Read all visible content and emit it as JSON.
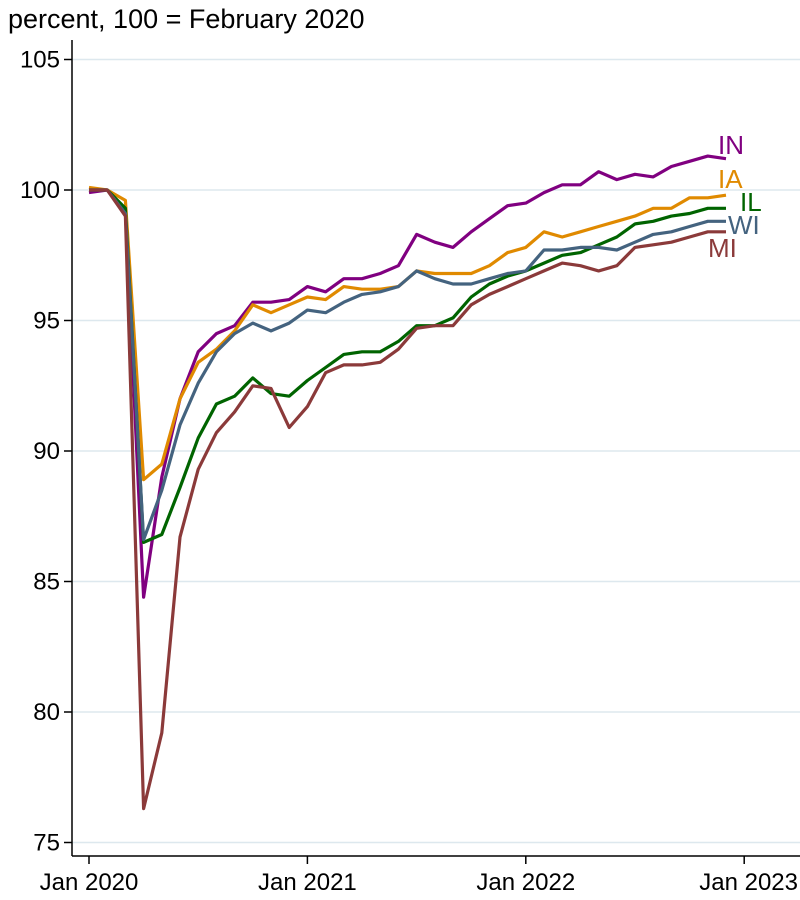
{
  "chart_data": {
    "type": "line",
    "title": "percent, 100 = February 2020",
    "xlabel": "",
    "ylabel": "",
    "ylim": [
      74.5,
      106
    ],
    "x_tick_labels": [
      "Jan 2020",
      "Jan 2021",
      "Jan 2022",
      "Jan 2023"
    ],
    "y_ticks": [
      75,
      80,
      85,
      90,
      95,
      100,
      105
    ],
    "grid": true,
    "x_start": "Jan 2020",
    "series": [
      {
        "name": "IN",
        "color": "#800080",
        "values": [
          99.9,
          100.0,
          99.2,
          84.4,
          89.0,
          92.0,
          93.8,
          94.5,
          94.8,
          95.7,
          95.7,
          95.8,
          96.3,
          96.1,
          96.6,
          96.6,
          96.8,
          97.1,
          98.3,
          98.0,
          97.8,
          98.4,
          98.9,
          99.4,
          99.5,
          99.9,
          100.2,
          100.2,
          100.7,
          100.4,
          100.6,
          100.5,
          100.9,
          101.1,
          101.3,
          101.2
        ]
      },
      {
        "name": "IA",
        "color": "#E08A00",
        "values": [
          100.1,
          100.0,
          99.6,
          88.9,
          89.5,
          92.0,
          93.4,
          93.9,
          94.6,
          95.6,
          95.3,
          95.6,
          95.9,
          95.8,
          96.3,
          96.2,
          96.2,
          96.3,
          96.9,
          96.8,
          96.8,
          96.8,
          97.1,
          97.6,
          97.8,
          98.4,
          98.2,
          98.4,
          98.6,
          98.8,
          99.0,
          99.3,
          99.3,
          99.7,
          99.7,
          99.8
        ]
      },
      {
        "name": "IL",
        "color": "#006400",
        "values": [
          100.0,
          100.0,
          99.3,
          86.5,
          86.8,
          88.6,
          90.5,
          91.8,
          92.1,
          92.8,
          92.2,
          92.1,
          92.7,
          93.2,
          93.7,
          93.8,
          93.8,
          94.2,
          94.8,
          94.8,
          95.1,
          95.9,
          96.4,
          96.7,
          96.9,
          97.2,
          97.5,
          97.6,
          97.9,
          98.2,
          98.7,
          98.8,
          99.0,
          99.1,
          99.3,
          99.3
        ]
      },
      {
        "name": "WI",
        "color": "#44637F",
        "values": [
          100.0,
          100.0,
          99.1,
          86.6,
          88.5,
          91.0,
          92.6,
          93.8,
          94.5,
          94.9,
          94.6,
          94.9,
          95.4,
          95.3,
          95.7,
          96.0,
          96.1,
          96.3,
          96.9,
          96.6,
          96.4,
          96.4,
          96.6,
          96.8,
          96.9,
          97.7,
          97.7,
          97.8,
          97.8,
          97.7,
          98.0,
          98.3,
          98.4,
          98.6,
          98.8,
          98.8
        ]
      },
      {
        "name": "MI",
        "color": "#8B3A3A",
        "values": [
          100.0,
          100.0,
          99.0,
          76.3,
          79.2,
          86.7,
          89.3,
          90.7,
          91.5,
          92.5,
          92.4,
          90.9,
          91.7,
          93.0,
          93.3,
          93.3,
          93.4,
          93.9,
          94.7,
          94.8,
          94.8,
          95.6,
          96.0,
          96.3,
          96.6,
          96.9,
          97.2,
          97.1,
          96.9,
          97.1,
          97.8,
          97.9,
          98.0,
          98.2,
          98.4,
          98.4
        ]
      }
    ]
  }
}
